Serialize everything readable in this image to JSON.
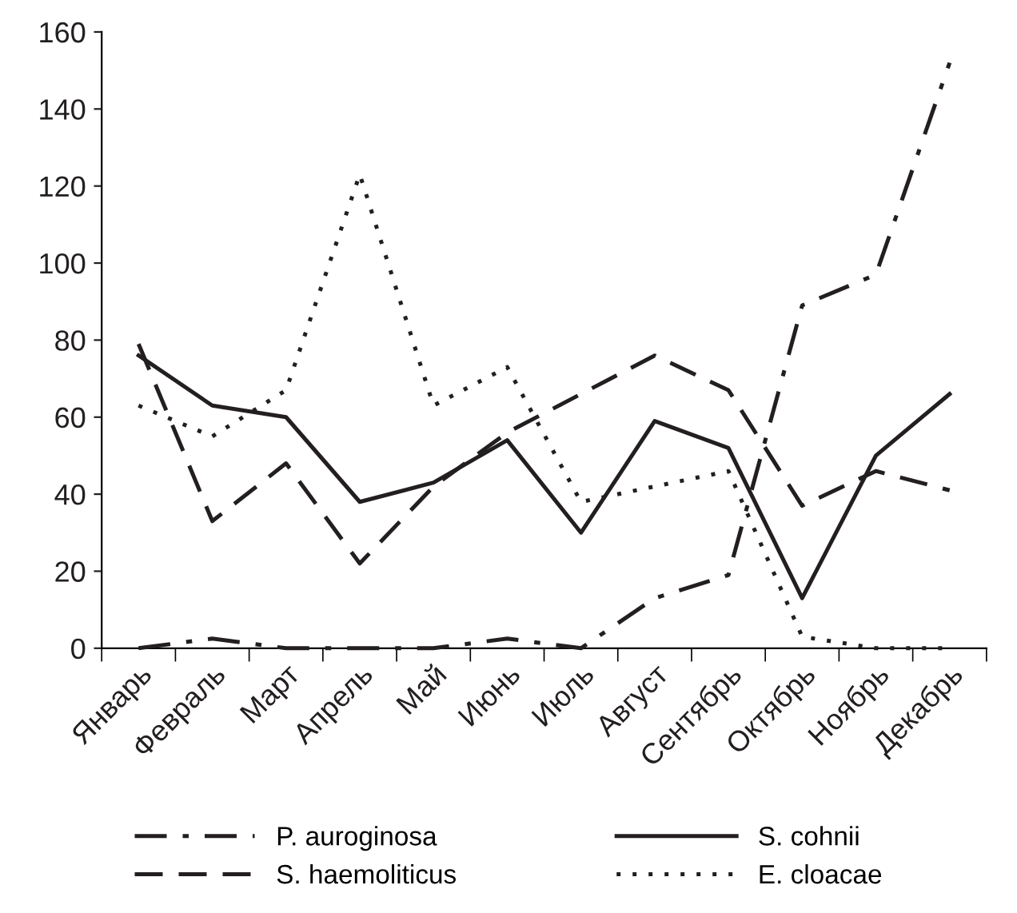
{
  "chart_data": {
    "type": "line",
    "categories": [
      "Январь",
      "Февраль",
      "Март",
      "Апрель",
      "Май",
      "Июнь",
      "Июль",
      "Август",
      "Сентябрь",
      "Октябрь",
      "Ноябрь",
      "Декабрь"
    ],
    "ylim": [
      0,
      160
    ],
    "yticks": [
      0,
      20,
      40,
      60,
      80,
      100,
      120,
      140,
      160
    ],
    "grid": false,
    "legend": "bottom",
    "marker": "none",
    "series": [
      {
        "name": "P. auroginosa",
        "color": "#231f20",
        "line_style": "dashdot",
        "values": [
          0,
          2.5,
          0,
          0,
          0,
          2.5,
          0,
          13,
          19,
          89,
          97,
          152
        ]
      },
      {
        "name": "S. cohnii",
        "color": "#231f20",
        "line_style": "solid",
        "values": [
          76,
          63,
          60,
          38,
          43,
          54,
          30,
          59,
          52,
          13,
          50,
          66
        ]
      },
      {
        "name": "S. haemoliticus",
        "color": "#231f20",
        "line_style": "dashed",
        "values": [
          79,
          33,
          48,
          22,
          42,
          56,
          66,
          76,
          67,
          37,
          46,
          41
        ]
      },
      {
        "name": "E. cloacae",
        "color": "#231f20",
        "line_style": "dotted",
        "values": [
          63,
          55,
          67,
          123,
          63,
          73,
          38,
          42,
          46,
          3,
          0,
          0
        ]
      }
    ]
  }
}
